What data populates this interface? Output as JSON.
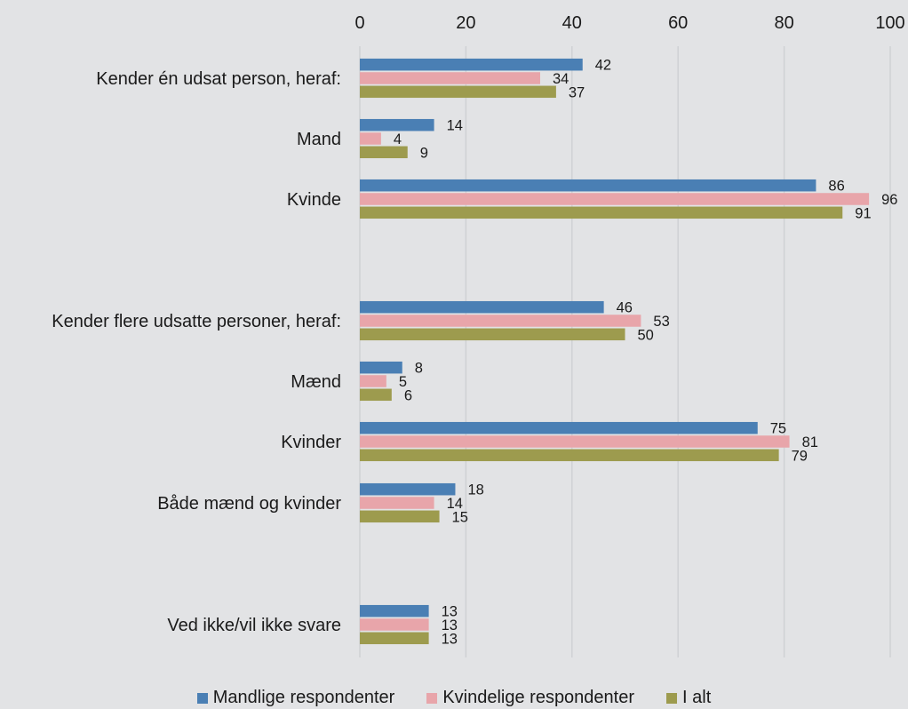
{
  "chart_data": {
    "type": "bar",
    "orientation": "horizontal",
    "xlim": [
      0,
      100
    ],
    "x_ticks": [
      "0",
      "20",
      "40",
      "60",
      "80",
      "100"
    ],
    "axis_position": "top",
    "grid": true,
    "legend_position": "bottom",
    "categories": [
      "Kender én udsat person, heraf:",
      "Mand",
      "Kvinde",
      "Kender flere udsatte personer, heraf:",
      "Mænd",
      "Kvinder",
      "Både mænd og kvinder",
      "Ved ikke/vil ikke svare"
    ],
    "series": [
      {
        "name": "Mandlige respondenter",
        "color": "#4a7fb4",
        "values": [
          42,
          14,
          86,
          46,
          8,
          75,
          18,
          13
        ]
      },
      {
        "name": "Kvindelige respondenter",
        "color": "#e8a5aa",
        "values": [
          34,
          4,
          96,
          53,
          5,
          81,
          14,
          13
        ]
      },
      {
        "name": "I alt",
        "color": "#9d9b4e",
        "values": [
          37,
          9,
          91,
          50,
          6,
          79,
          15,
          13
        ]
      }
    ]
  }
}
